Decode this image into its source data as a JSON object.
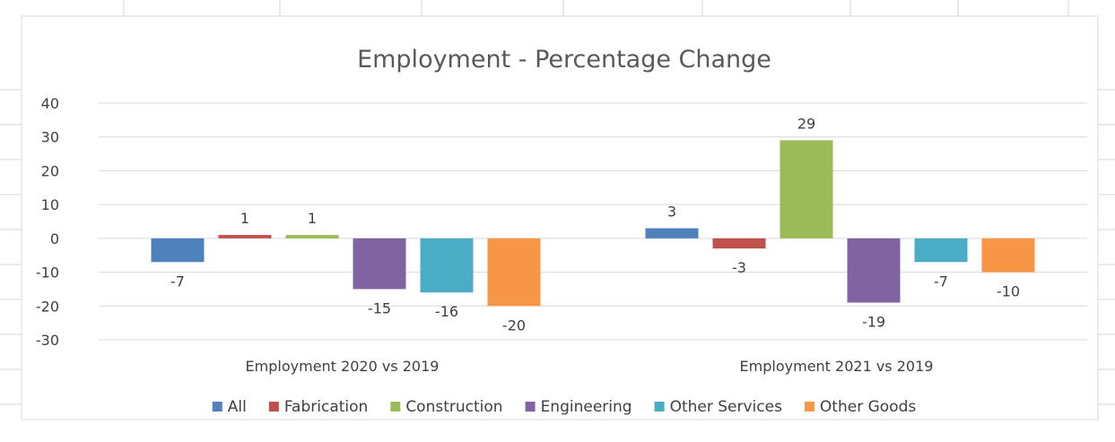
{
  "chart_data": {
    "type": "bar",
    "title": "Employment - Percentage Change",
    "xlabel": "",
    "ylabel": "",
    "categories": [
      "Employment 2020 vs 2019",
      "Employment 2021 vs 2019"
    ],
    "series": [
      {
        "name": "All",
        "values": [
          -7,
          3
        ],
        "labels": [
          "-7",
          "3"
        ],
        "color": "#4f81bd"
      },
      {
        "name": "Fabrication",
        "values": [
          1,
          -3
        ],
        "labels": [
          "1",
          "-3"
        ],
        "color": "#c0504d"
      },
      {
        "name": "Construction",
        "values": [
          1,
          29
        ],
        "labels": [
          "1",
          "29"
        ],
        "color": "#9bbb59"
      },
      {
        "name": "Engineering",
        "values": [
          -15,
          -19
        ],
        "labels": [
          "-15",
          "-19"
        ],
        "color": "#8064a2"
      },
      {
        "name": "Other Services",
        "values": [
          -16,
          -7
        ],
        "labels": [
          "-16",
          "-7"
        ],
        "color": "#4bacc6"
      },
      {
        "name": "Other Goods",
        "values": [
          -20,
          -10
        ],
        "labels": [
          "-20",
          "-10"
        ],
        "color": "#f79646"
      }
    ],
    "ylim": [
      -30,
      40
    ],
    "yticks": [
      40,
      30,
      20,
      10,
      0,
      -10,
      -20,
      -30
    ],
    "grid": true,
    "legend": "bottom"
  }
}
